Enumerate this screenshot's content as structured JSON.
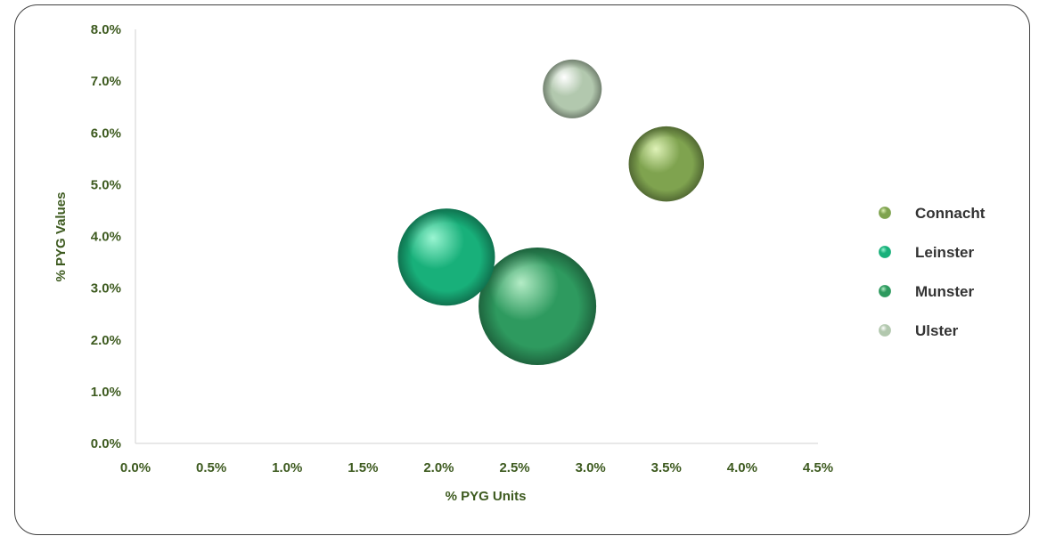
{
  "chart_data": {
    "type": "bubble",
    "xlabel": "% PYG Units",
    "ylabel": "% PYG Values",
    "xlim": [
      0,
      4.5
    ],
    "ylim": [
      0,
      8
    ],
    "x_ticks": [
      "0.0%",
      "0.5%",
      "1.0%",
      "1.5%",
      "2.0%",
      "2.5%",
      "3.0%",
      "3.5%",
      "4.0%",
      "4.5%"
    ],
    "y_ticks": [
      "0.0%",
      "1.0%",
      "2.0%",
      "3.0%",
      "4.0%",
      "5.0%",
      "6.0%",
      "7.0%",
      "8.0%"
    ],
    "grid": false,
    "legend_position": "right",
    "series": [
      {
        "name": "Connacht",
        "x": 3.5,
        "y": 5.4,
        "size": 0.9,
        "color": "#7fa34f",
        "highlight": "#dff2b8"
      },
      {
        "name": "Leinster",
        "x": 2.05,
        "y": 3.6,
        "size": 1.5,
        "color": "#18b07a",
        "highlight": "#9af5d2"
      },
      {
        "name": "Munster",
        "x": 2.65,
        "y": 2.65,
        "size": 2.2,
        "color": "#2e9a5f",
        "highlight": "#b4ecc6"
      },
      {
        "name": "Ulster",
        "x": 2.88,
        "y": 6.85,
        "size": 0.55,
        "color": "#b2c8ae",
        "highlight": "#ffffff"
      }
    ]
  }
}
